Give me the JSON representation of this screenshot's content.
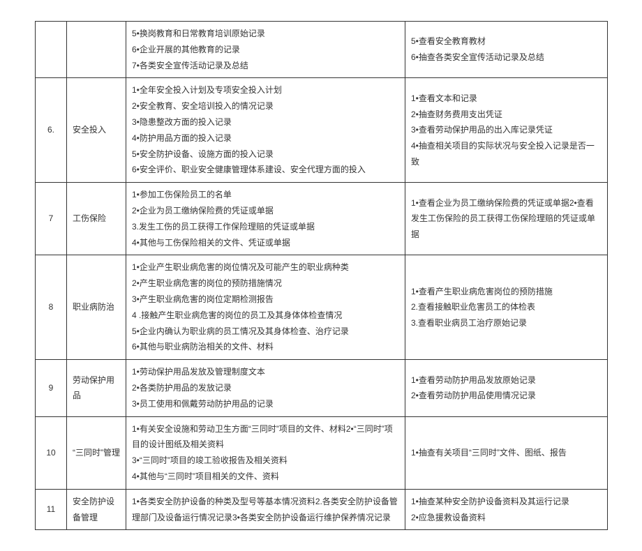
{
  "table": {
    "rows": [
      {
        "num": "",
        "cat": "",
        "left": "5•换岗教育和日常教育培训原始记录\n6•企业开展的其他教育的记录\n7•各类安全宣传活动记录及总结",
        "right": "5•查看安全教育教材\n6•抽查各类安全宣传活动记录及总结"
      },
      {
        "num": "6.",
        "cat": "安全投入",
        "left": "1•全年安全投入计划及专项安全投入计划\n2•安全教育、安全培训投入的情况记录\n3•隐患整改方面的投入记录\n4•防护用品方面的投入记录\n5•安全防护设备、设施方面的投入记录\n6•安全评价、职业安全健康管理体系建设、安全代理方面的投入",
        "right": "1•查看文本和记录\n2•抽查财务费用支出凭证\n3•查看劳动保护用品的出入库记录凭证\n4•抽查相关项目的实际状况与安全投入记录是否一致"
      },
      {
        "num": "7",
        "cat": "工伤保险",
        "left": "1•参加工伤保险员工的名单\n2•企业为员工缴纳保险费的凭证或单据\n3.发生工伤的员工获得工作保险理赔的凭证或单据\n4•其他与工伤保险相关的文件、凭证或单据",
        "right": "1•查看企业为员工缴纳保险费的凭证或单据2•查看发生工伤保险的员工获得工伤保险理赔的凭证或单据"
      },
      {
        "num": "8",
        "cat": "职业病防治",
        "left": "1•企业产生职业病危害的岗位情况及可能产生的职业病种类\n2•产生职业病危害的岗位的预防措施情况\n3•产生职业病危害的岗位定期检测报告\n4 .接触产生职业病危害的岗位的员工及其身体体检查情况\n5•企业内确认为职业病的员工情况及其身体检查、治疗记录\n6•其他与职业病防治相关的文件、材料",
        "right": "1•查看产生职业病危害岗位的预防措施\n2.查看接触职业危害员工的体检表\n3.查看职业病员工治疗原始记录"
      },
      {
        "num": "9",
        "cat": "劳动保护用品",
        "left": "1•劳动保护用品发放及管理制度文本\n2•各类防护用品的发放记录\n3•员工使用和佩戴劳动防护用品的记录",
        "right": "1•查看劳动防护用品发放原始记录\n2•查看劳动防护用品使用情况记录"
      },
      {
        "num": "10",
        "cat": "“三同时”管理",
        "left": "1•有关安全设施和劳动卫生方面“三同时”项目的文件、材料2•“三同时”项目的设计图纸及相关资料\n3•“三同时”项目的竣工验收报告及相关资料\n4•其他与“三同时”项目相关的文件、资料",
        "right": "1•抽查有关项目“三同时”文件、图纸、报告"
      },
      {
        "num": "11",
        "cat": "安全防护设备管理",
        "left": "1•各类安全防护设备的种类及型号等基本情况资料2.各类安全防护设备管理部门及设备运行情况记录3•各类安全防护设备运行维护保养情况记录",
        "right": "1•抽查某种安全防护设备资料及其运行记录\n2•应急援救设备资料"
      }
    ]
  }
}
